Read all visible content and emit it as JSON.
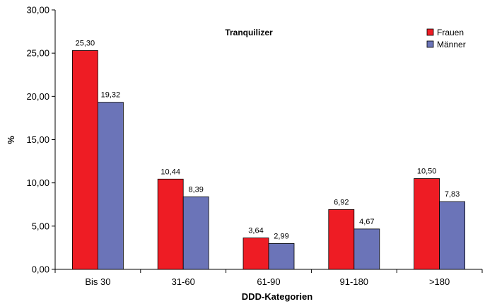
{
  "chart_data": {
    "type": "bar",
    "title": "Tranquilizer",
    "xlabel": "DDD-Kategorien",
    "ylabel": "%",
    "ylim": [
      0,
      30
    ],
    "y_ticks": [
      "0,00",
      "5,00",
      "10,00",
      "15,00",
      "20,00",
      "25,00",
      "30,00"
    ],
    "categories": [
      "Bis 30",
      "31-60",
      "61-90",
      "91-180",
      ">180"
    ],
    "series": [
      {
        "name": "Frauen",
        "color": "#ee1c24",
        "values": [
          25.3,
          10.44,
          3.64,
          6.92,
          10.5
        ],
        "labels": [
          "25,30",
          "10,44",
          "3,64",
          "6,92",
          "10,50"
        ]
      },
      {
        "name": "Männer",
        "color": "#6b74b8",
        "values": [
          19.32,
          8.39,
          2.99,
          4.67,
          7.83
        ],
        "labels": [
          "19,32",
          "8,39",
          "2,99",
          "4,67",
          "7,83"
        ]
      }
    ],
    "legend_position": "top-right",
    "grid": false
  }
}
